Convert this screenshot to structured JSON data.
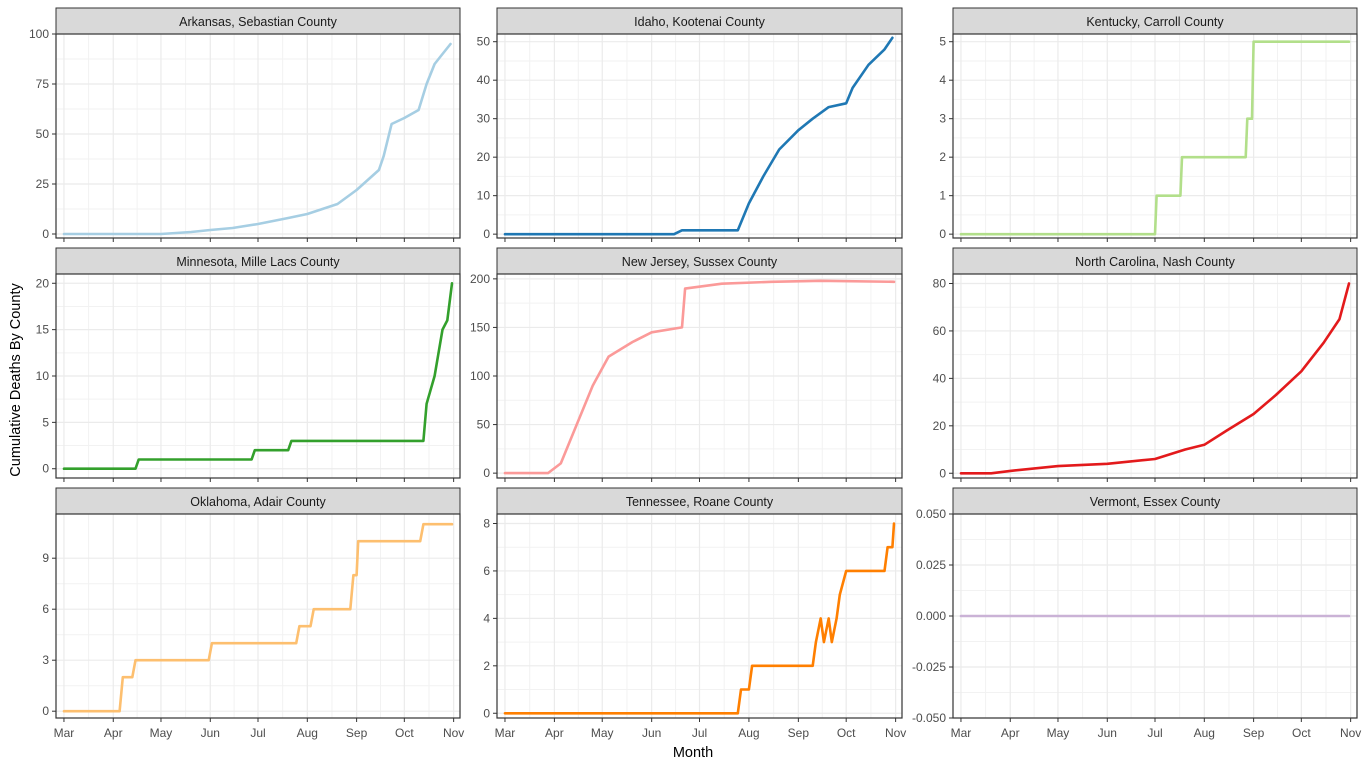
{
  "axes": {
    "xlabel": "Month",
    "ylabel": "Cumulative Deaths By County"
  },
  "x_tick_labels": [
    "Mar",
    "Apr",
    "May",
    "Jun",
    "Jul",
    "Aug",
    "Sep",
    "Oct",
    "Nov"
  ],
  "chart_data": [
    {
      "type": "line",
      "title": "Arkansas, Sebastian County",
      "color": "#A6CEE3",
      "ylim": [
        -2,
        100
      ],
      "yticks": [
        "0",
        "25",
        "50",
        "75",
        "100"
      ],
      "ytick_values": [
        0,
        25,
        50,
        75,
        100
      ],
      "series": [
        {
          "x": [
            "2020-03-01",
            "2020-05-01",
            "2020-05-20",
            "2020-06-01",
            "2020-06-15",
            "2020-07-01",
            "2020-07-20",
            "2020-08-01",
            "2020-08-20",
            "2020-09-01",
            "2020-09-15",
            "2020-09-18",
            "2020-09-23",
            "2020-10-01",
            "2020-10-10",
            "2020-10-15",
            "2020-10-20",
            "2020-10-25",
            "2020-10-30"
          ],
          "y": [
            0,
            0,
            1,
            2,
            3,
            5,
            8,
            10,
            15,
            22,
            32,
            39,
            55,
            58,
            62,
            75,
            85,
            90,
            95
          ]
        }
      ]
    },
    {
      "type": "line",
      "title": "Idaho, Kootenai County",
      "color": "#1F78B4",
      "ylim": [
        -1,
        52
      ],
      "yticks": [
        "0",
        "10",
        "20",
        "30",
        "40",
        "50"
      ],
      "ytick_values": [
        0,
        10,
        20,
        30,
        40,
        50
      ],
      "series": [
        {
          "x": [
            "2020-03-01",
            "2020-06-15",
            "2020-06-20",
            "2020-07-25",
            "2020-08-01",
            "2020-08-10",
            "2020-08-20",
            "2020-09-01",
            "2020-09-10",
            "2020-09-20",
            "2020-10-01",
            "2020-10-05",
            "2020-10-15",
            "2020-10-25",
            "2020-10-30"
          ],
          "y": [
            0,
            0,
            1,
            1,
            8,
            15,
            22,
            27,
            30,
            33,
            34,
            38,
            44,
            48,
            51
          ]
        }
      ]
    },
    {
      "type": "line",
      "title": "Kentucky, Carroll County",
      "color": "#B2DF8A",
      "ylim": [
        -0.1,
        5.2
      ],
      "yticks": [
        "0",
        "1",
        "2",
        "3",
        "4",
        "5"
      ],
      "ytick_values": [
        0,
        1,
        2,
        3,
        4,
        5
      ],
      "series": [
        {
          "x": [
            "2020-03-01",
            "2020-07-01",
            "2020-07-02",
            "2020-07-17",
            "2020-07-18",
            "2020-08-27",
            "2020-08-28",
            "2020-08-31",
            "2020-09-01",
            "2020-10-31"
          ],
          "y": [
            0,
            0,
            1,
            1,
            2,
            2,
            3,
            3,
            5,
            5
          ]
        }
      ]
    },
    {
      "type": "line",
      "title": "Minnesota, Mille Lacs County",
      "color": "#33A02C",
      "ylim": [
        -1,
        21
      ],
      "yticks": [
        "0",
        "5",
        "10",
        "15",
        "20"
      ],
      "ytick_values": [
        0,
        5,
        10,
        15,
        20
      ],
      "series": [
        {
          "x": [
            "2020-03-01",
            "2020-04-15",
            "2020-04-17",
            "2020-06-27",
            "2020-06-29",
            "2020-07-20",
            "2020-07-22",
            "2020-10-13",
            "2020-10-15",
            "2020-10-20",
            "2020-10-25",
            "2020-10-28",
            "2020-10-31"
          ],
          "y": [
            0,
            0,
            1,
            1,
            2,
            2,
            3,
            3,
            7,
            10,
            15,
            16,
            20
          ]
        }
      ]
    },
    {
      "type": "line",
      "title": "New Jersey, Sussex County",
      "color": "#FB9A99",
      "ylim": [
        -5,
        205
      ],
      "yticks": [
        "0",
        "50",
        "100",
        "150",
        "200"
      ],
      "ytick_values": [
        0,
        50,
        100,
        150,
        200
      ],
      "series": [
        {
          "x": [
            "2020-03-01",
            "2020-03-28",
            "2020-04-05",
            "2020-04-15",
            "2020-04-25",
            "2020-05-05",
            "2020-05-20",
            "2020-06-01",
            "2020-06-20",
            "2020-06-22",
            "2020-07-15",
            "2020-08-15",
            "2020-09-15",
            "2020-10-31"
          ],
          "y": [
            0,
            0,
            10,
            50,
            90,
            120,
            135,
            145,
            150,
            190,
            195,
            197,
            198,
            197
          ]
        }
      ]
    },
    {
      "type": "line",
      "title": "North Carolina, Nash County",
      "color": "#E31A1C",
      "ylim": [
        -2,
        84
      ],
      "yticks": [
        "0",
        "20",
        "40",
        "60",
        "80"
      ],
      "ytick_values": [
        0,
        20,
        40,
        60,
        80
      ],
      "series": [
        {
          "x": [
            "2020-03-01",
            "2020-03-20",
            "2020-04-01",
            "2020-05-01",
            "2020-06-01",
            "2020-07-01",
            "2020-07-20",
            "2020-08-01",
            "2020-08-15",
            "2020-09-01",
            "2020-09-15",
            "2020-10-01",
            "2020-10-15",
            "2020-10-25",
            "2020-10-31"
          ],
          "y": [
            0,
            0,
            1,
            3,
            4,
            6,
            10,
            12,
            18,
            25,
            33,
            43,
            55,
            65,
            80
          ]
        }
      ]
    },
    {
      "type": "line",
      "title": "Oklahoma, Adair County",
      "color": "#FDBF6F",
      "ylim": [
        -0.4,
        11.6
      ],
      "yticks": [
        "0",
        "3",
        "6",
        "9"
      ],
      "ytick_values": [
        0,
        3,
        6,
        9
      ],
      "series": [
        {
          "x": [
            "2020-03-01",
            "2020-04-05",
            "2020-04-07",
            "2020-04-13",
            "2020-04-15",
            "2020-05-31",
            "2020-06-02",
            "2020-07-25",
            "2020-07-27",
            "2020-08-03",
            "2020-08-05",
            "2020-08-28",
            "2020-08-30",
            "2020-09-01",
            "2020-09-02",
            "2020-10-11",
            "2020-10-13",
            "2020-10-31"
          ],
          "y": [
            0,
            0,
            2,
            2,
            3,
            3,
            4,
            4,
            5,
            5,
            6,
            6,
            8,
            8,
            10,
            10,
            11,
            11
          ]
        }
      ]
    },
    {
      "type": "line",
      "title": "Tennessee, Roane County",
      "color": "#FF7F00",
      "ylim": [
        -0.2,
        8.4
      ],
      "yticks": [
        "0",
        "2",
        "4",
        "6",
        "8"
      ],
      "ytick_values": [
        0,
        2,
        4,
        6,
        8
      ],
      "series": [
        {
          "x": [
            "2020-03-01",
            "2020-07-25",
            "2020-07-27",
            "2020-08-01",
            "2020-08-03",
            "2020-09-10",
            "2020-09-12",
            "2020-09-15",
            "2020-09-17",
            "2020-09-20",
            "2020-09-22",
            "2020-09-25",
            "2020-09-27",
            "2020-10-01",
            "2020-10-03",
            "2020-10-25",
            "2020-10-27",
            "2020-10-30",
            "2020-10-31"
          ],
          "y": [
            0,
            0,
            1,
            1,
            2,
            2,
            3,
            4,
            3,
            4,
            3,
            4,
            5,
            6,
            6,
            6,
            7,
            7,
            8
          ]
        }
      ]
    },
    {
      "type": "line",
      "title": "Vermont, Essex County",
      "color": "#CAB2D6",
      "ylim": [
        -0.05,
        0.05
      ],
      "yticks": [
        "-0.050",
        "-0.025",
        "0.000",
        "0.025",
        "0.050"
      ],
      "ytick_values": [
        -0.05,
        -0.025,
        0,
        0.025,
        0.05
      ],
      "series": [
        {
          "x": [
            "2020-03-01",
            "2020-10-31"
          ],
          "y": [
            0,
            0
          ]
        }
      ]
    }
  ]
}
